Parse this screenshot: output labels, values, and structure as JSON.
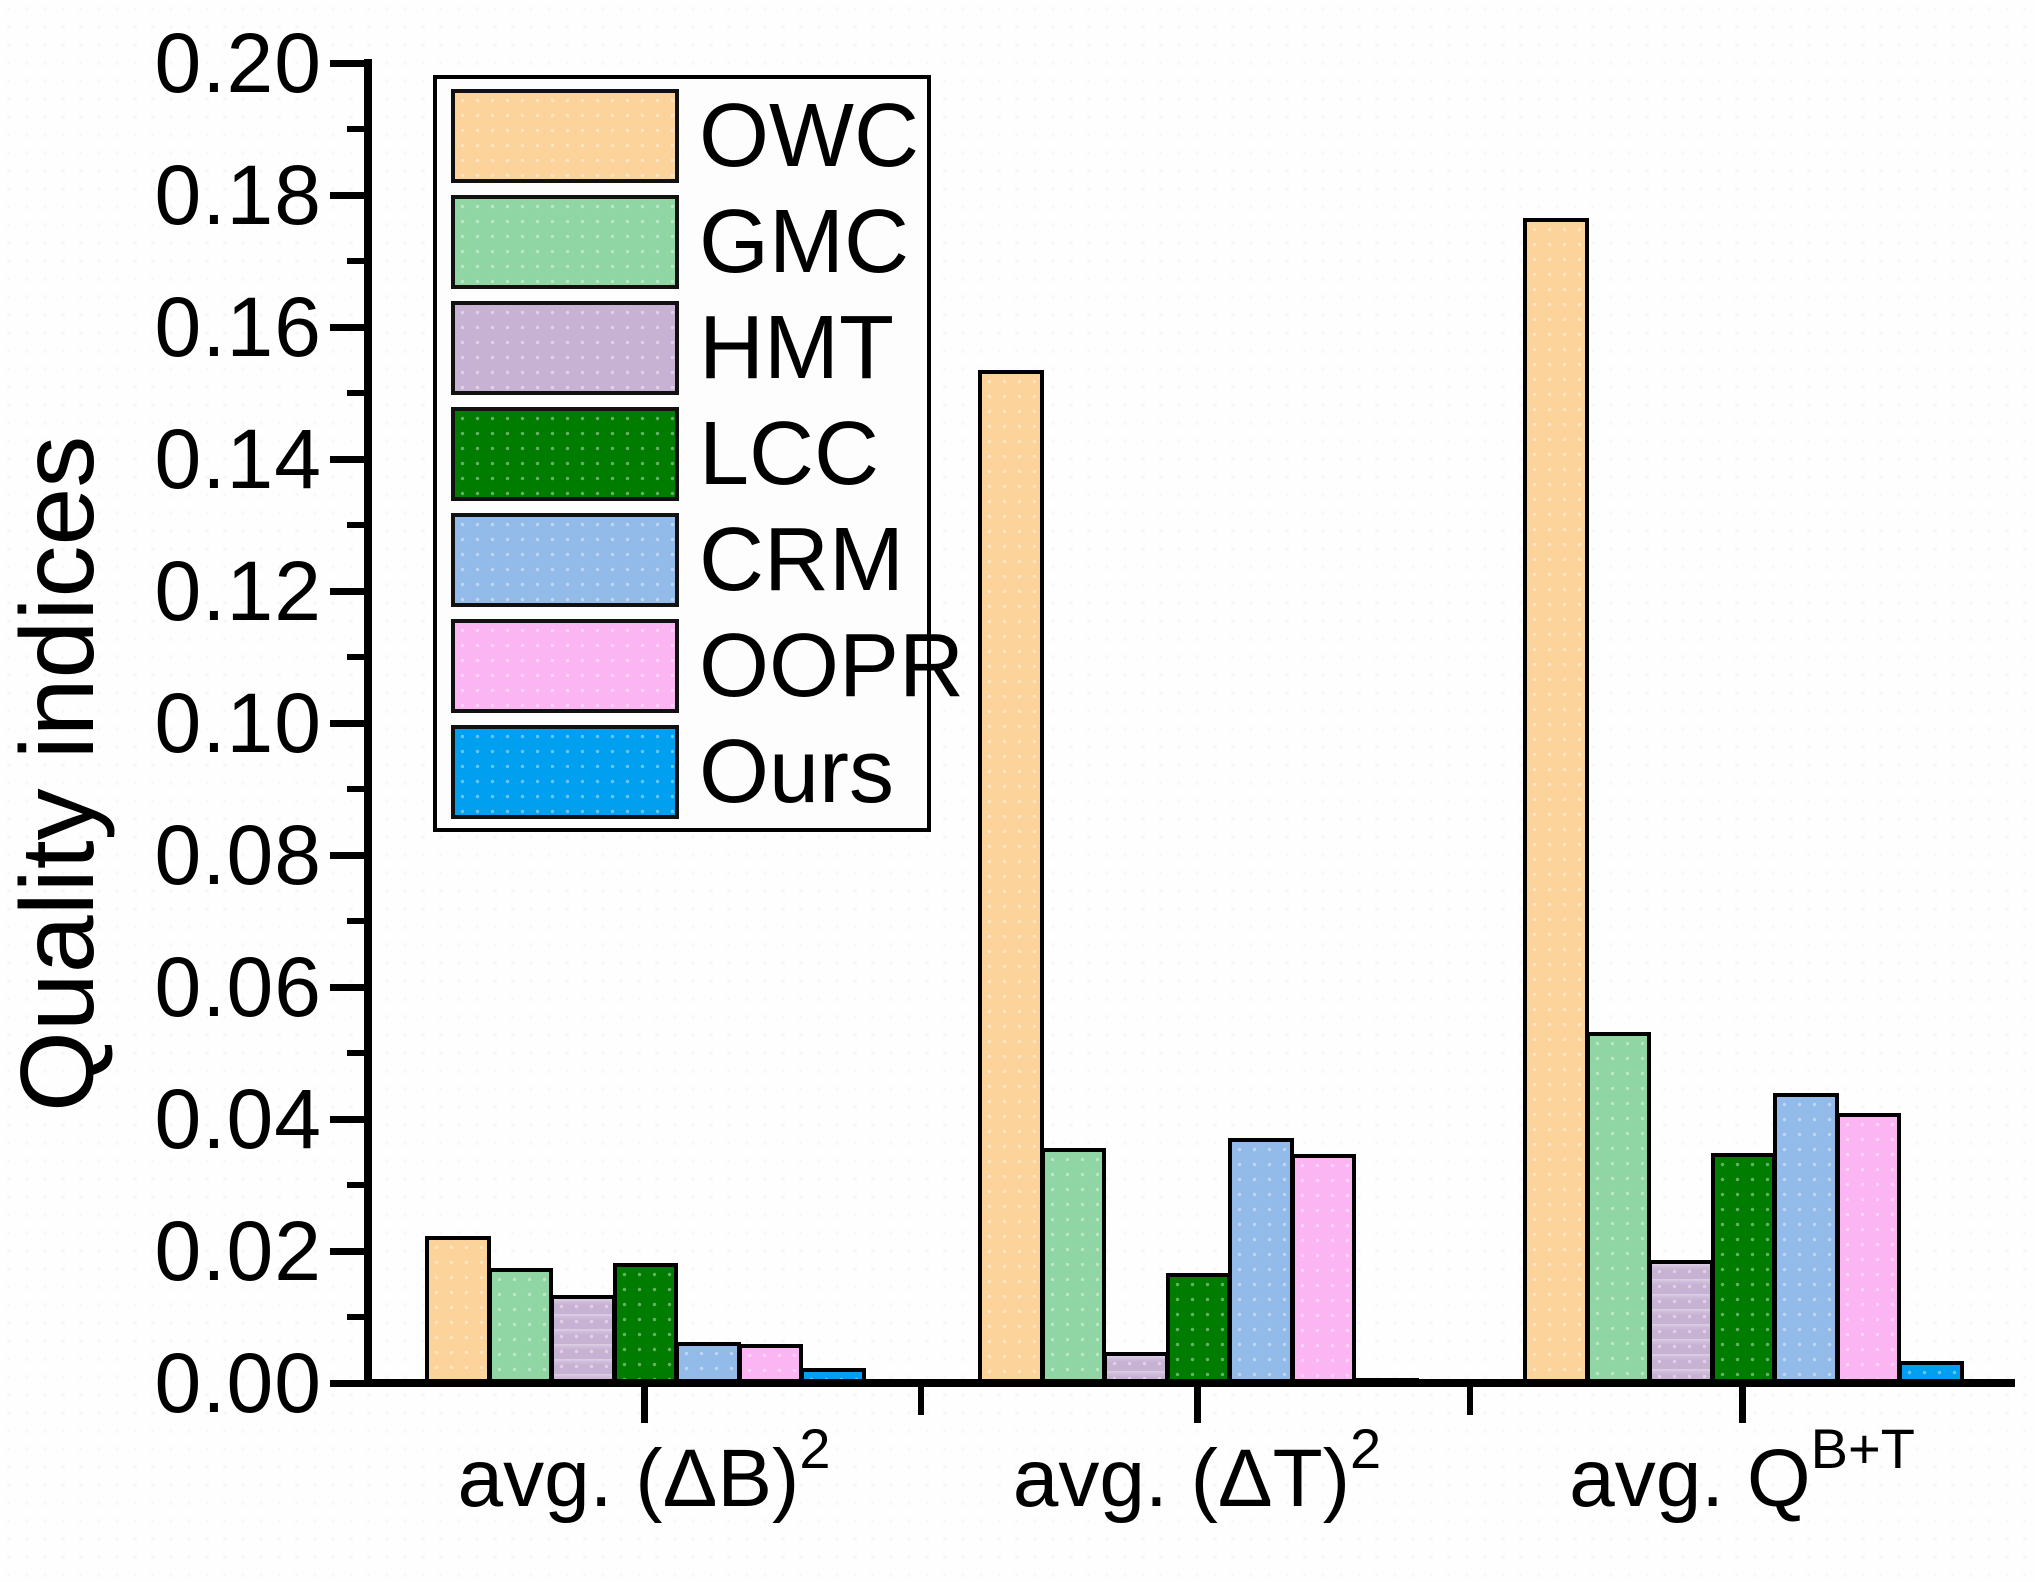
{
  "chart_data": {
    "type": "bar",
    "title": "",
    "ylabel": "Quality indices",
    "xlabel": "",
    "categories": [
      {
        "base": "avg. (ΔB)",
        "sup": "2"
      },
      {
        "base": "avg. (ΔT)",
        "sup": "2"
      },
      {
        "base": "avg. Q",
        "sup": "B+T"
      }
    ],
    "series": [
      {
        "name": "OWC",
        "color": "#FBD39B",
        "values": [
          0.0222,
          0.1535,
          0.1765
        ]
      },
      {
        "name": "GMC",
        "color": "#90D5A4",
        "values": [
          0.0175,
          0.0356,
          0.0532
        ]
      },
      {
        "name": "HMT",
        "color": "#C8B2D4",
        "values": [
          0.0134,
          0.0047,
          0.0186
        ]
      },
      {
        "name": "LCC",
        "color": "#007C00",
        "values": [
          0.0182,
          0.0167,
          0.0349
        ]
      },
      {
        "name": "CRM",
        "color": "#93BBE9",
        "values": [
          0.0062,
          0.0371,
          0.0439
        ]
      },
      {
        "name": "OOPR",
        "color": "#FBB5F2",
        "values": [
          0.0059,
          0.0347,
          0.0409
        ]
      },
      {
        "name": "Ours",
        "color": "#009FEF",
        "values": [
          0.0023,
          0.0008,
          0.0033
        ]
      }
    ],
    "ylim": [
      0,
      0.2
    ],
    "ytick_labels": [
      "0.00",
      "0.02",
      "0.04",
      "0.06",
      "0.08",
      "0.10",
      "0.12",
      "0.14",
      "0.16",
      "0.18",
      "0.20"
    ],
    "minor_yticks_every": 0.01,
    "grid": false,
    "legend_position": "upper-left",
    "axis_color": "#000000"
  }
}
